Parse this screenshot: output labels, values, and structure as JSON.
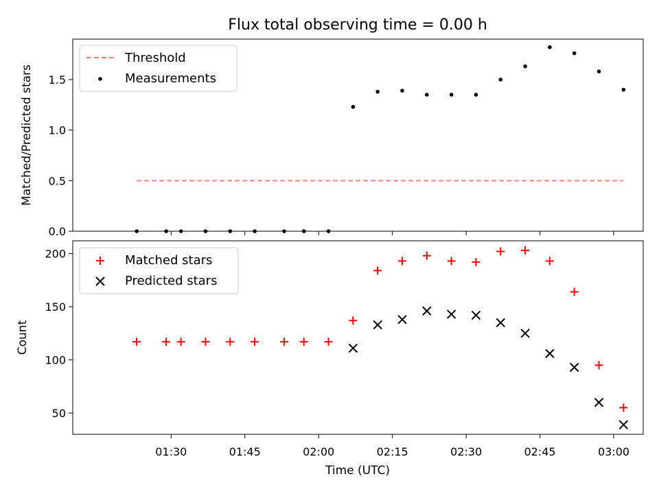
{
  "colors": {
    "threshold": "#ff7f7f",
    "measurements": "#000000",
    "matched": "#ff0000",
    "predicted": "#000000",
    "axes": "#000000",
    "background": "#ffffff"
  },
  "chart_data": [
    {
      "type": "scatter",
      "title": "Flux total observing time = 0.00 h",
      "xlabel": "",
      "ylabel": "Matched/Predicted stars",
      "xlim": [
        "01:10",
        "03:06"
      ],
      "ylim": [
        0,
        1.9
      ],
      "yticks": [
        0.0,
        0.5,
        1.0,
        1.5
      ],
      "ytick_labels": [
        "0.0",
        "0.5",
        "1.0",
        "1.5"
      ],
      "grid": false,
      "legend_position": "top-left",
      "series": [
        {
          "name": "Threshold",
          "style": "dashed-line",
          "x": [
            "01:23",
            "03:02"
          ],
          "y": [
            0.5,
            0.5
          ]
        },
        {
          "name": "Measurements",
          "style": "dot",
          "x": [
            "01:23",
            "01:29",
            "01:32",
            "01:37",
            "01:42",
            "01:47",
            "01:53",
            "01:57",
            "02:02",
            "02:07",
            "02:12",
            "02:17",
            "02:22",
            "02:27",
            "02:32",
            "02:37",
            "02:42",
            "02:47",
            "02:52",
            "02:57",
            "03:02"
          ],
          "y": [
            0.0,
            0.0,
            0.0,
            0.0,
            0.0,
            0.0,
            0.0,
            0.0,
            0.0,
            1.23,
            1.38,
            1.39,
            1.35,
            1.35,
            1.35,
            1.5,
            1.63,
            1.82,
            1.76,
            1.58,
            1.4
          ]
        }
      ]
    },
    {
      "type": "scatter",
      "title": "",
      "xlabel": "Time (UTC)",
      "ylabel": "Count",
      "xlim": [
        "01:10",
        "03:06"
      ],
      "ylim": [
        30,
        212
      ],
      "yticks": [
        50,
        100,
        150,
        200
      ],
      "ytick_labels": [
        "50",
        "100",
        "150",
        "200"
      ],
      "xticks": [
        "01:30",
        "01:45",
        "02:00",
        "02:15",
        "02:30",
        "02:45",
        "03:00"
      ],
      "grid": false,
      "legend_position": "top-left",
      "series": [
        {
          "name": "Matched stars",
          "style": "plus",
          "x": [
            "01:23",
            "01:29",
            "01:32",
            "01:37",
            "01:42",
            "01:47",
            "01:53",
            "01:57",
            "02:02",
            "02:07",
            "02:12",
            "02:17",
            "02:22",
            "02:27",
            "02:32",
            "02:37",
            "02:42",
            "02:47",
            "02:52",
            "02:57",
            "03:02"
          ],
          "y": [
            117,
            117,
            117,
            117,
            117,
            117,
            117,
            117,
            117,
            137,
            184,
            193,
            198,
            193,
            192,
            202,
            203,
            193,
            164,
            95,
            55
          ]
        },
        {
          "name": "Predicted stars",
          "style": "cross",
          "x": [
            "02:07",
            "02:12",
            "02:17",
            "02:22",
            "02:27",
            "02:32",
            "02:37",
            "02:42",
            "02:47",
            "02:52",
            "02:57",
            "03:02"
          ],
          "y": [
            111,
            133,
            138,
            146,
            143,
            142,
            135,
            125,
            106,
            93,
            60,
            39
          ]
        }
      ]
    }
  ]
}
